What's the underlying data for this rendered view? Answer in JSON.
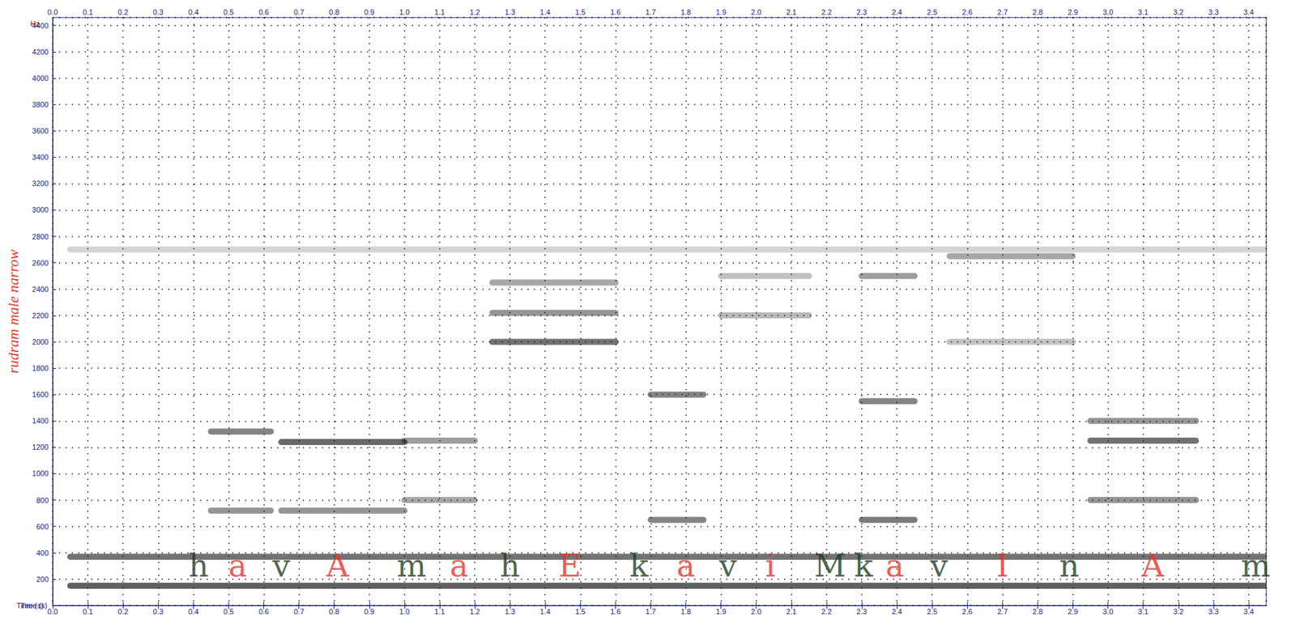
{
  "chart_data": {
    "type": "spectrogram",
    "xlabel": "Time (s)",
    "ylabel": "rudram male narrow",
    "yunit": "Hz",
    "xlim": [
      0,
      3.45
    ],
    "ylim": [
      0,
      4460
    ],
    "xticks": [
      {
        "value": 0,
        "label": "0.0"
      },
      {
        "value": 0.1,
        "label": "0.1"
      },
      {
        "value": 0.2,
        "label": "0.2"
      },
      {
        "value": 0.3,
        "label": "0.3"
      },
      {
        "value": 0.4,
        "label": "0.4"
      },
      {
        "value": 0.5,
        "label": "0.5"
      },
      {
        "value": 0.6,
        "label": "0.6"
      },
      {
        "value": 0.7,
        "label": "0.7"
      },
      {
        "value": 0.8,
        "label": "0.8"
      },
      {
        "value": 0.9,
        "label": "0.9"
      },
      {
        "value": 1,
        "label": "1.0"
      },
      {
        "value": 1.1,
        "label": "1.1"
      },
      {
        "value": 1.2,
        "label": "1.2"
      },
      {
        "value": 1.3,
        "label": "1.3"
      },
      {
        "value": 1.4,
        "label": "1.4"
      },
      {
        "value": 1.5,
        "label": "1.5"
      },
      {
        "value": 1.6,
        "label": "1.6"
      },
      {
        "value": 1.7,
        "label": "1.7"
      },
      {
        "value": 1.8,
        "label": "1.8"
      },
      {
        "value": 1.9,
        "label": "1.9"
      },
      {
        "value": 2,
        "label": "2.0"
      },
      {
        "value": 2.1,
        "label": "2.1"
      },
      {
        "value": 2.2,
        "label": "2.2"
      },
      {
        "value": 2.3,
        "label": "2.3"
      },
      {
        "value": 2.4,
        "label": "2.4"
      },
      {
        "value": 2.5,
        "label": "2.5"
      },
      {
        "value": 2.6,
        "label": "2.6"
      },
      {
        "value": 2.7,
        "label": "2.7"
      },
      {
        "value": 2.8,
        "label": "2.8"
      },
      {
        "value": 2.9,
        "label": "2.9"
      },
      {
        "value": 3,
        "label": "3.0"
      },
      {
        "value": 3.1,
        "label": "3.1"
      },
      {
        "value": 3.2,
        "label": "3.2"
      },
      {
        "value": 3.3,
        "label": "3.3"
      },
      {
        "value": 3.4,
        "label": "3.4"
      }
    ],
    "yticks": [
      200,
      400,
      600,
      800,
      1000,
      1200,
      1400,
      1600,
      1800,
      2000,
      2200,
      2400,
      2600,
      2800,
      3000,
      3200,
      3400,
      3600,
      3800,
      4000,
      4200,
      4400
    ],
    "grid": true,
    "bands": [
      [
        0.05,
        3.45,
        150,
        0.9
      ],
      [
        0.05,
        3.45,
        370,
        0.8
      ],
      [
        0.05,
        3.45,
        2700,
        0.25
      ],
      [
        0.45,
        0.62,
        1320,
        0.7
      ],
      [
        0.45,
        0.62,
        720,
        0.6
      ],
      [
        0.65,
        1.0,
        1240,
        0.85
      ],
      [
        0.65,
        1.0,
        720,
        0.6
      ],
      [
        1.0,
        1.2,
        1250,
        0.55
      ],
      [
        1.0,
        1.2,
        800,
        0.5
      ],
      [
        1.25,
        1.6,
        2000,
        0.8
      ],
      [
        1.25,
        1.6,
        2220,
        0.6
      ],
      [
        1.25,
        1.6,
        2450,
        0.5
      ],
      [
        1.7,
        1.85,
        1600,
        0.7
      ],
      [
        1.7,
        1.85,
        650,
        0.7
      ],
      [
        1.9,
        2.15,
        2200,
        0.4
      ],
      [
        1.9,
        2.15,
        2500,
        0.35
      ],
      [
        2.3,
        2.45,
        1550,
        0.7
      ],
      [
        2.3,
        2.45,
        650,
        0.75
      ],
      [
        2.3,
        2.45,
        2500,
        0.55
      ],
      [
        2.55,
        2.9,
        2650,
        0.5
      ],
      [
        2.55,
        2.9,
        2000,
        0.35
      ],
      [
        2.95,
        3.25,
        1250,
        0.8
      ],
      [
        2.95,
        3.25,
        1400,
        0.6
      ],
      [
        2.95,
        3.25,
        800,
        0.6
      ]
    ],
    "annotations": [
      {
        "text": "h",
        "x": 0.415,
        "y": 300,
        "color": "#1f3d22"
      },
      {
        "text": "a",
        "x": 0.526,
        "y": 300,
        "color": "#e8322a"
      },
      {
        "text": "v",
        "x": 0.65,
        "y": 300,
        "color": "#1f3d22"
      },
      {
        "text": "A",
        "x": 0.81,
        "y": 300,
        "color": "#e8322a"
      },
      {
        "text": "m",
        "x": 1.02,
        "y": 300,
        "color": "#1f3d22"
      },
      {
        "text": "a",
        "x": 1.155,
        "y": 300,
        "color": "#e8322a"
      },
      {
        "text": "h",
        "x": 1.3,
        "y": 300,
        "color": "#1f3d22"
      },
      {
        "text": "E",
        "x": 1.47,
        "y": 300,
        "color": "#e8322a"
      },
      {
        "text": "k",
        "x": 1.667,
        "y": 300,
        "color": "#1f3d22"
      },
      {
        "text": "a",
        "x": 1.8,
        "y": 300,
        "color": "#e8322a"
      },
      {
        "text": "v",
        "x": 1.92,
        "y": 300,
        "color": "#1f3d22"
      },
      {
        "text": "i",
        "x": 2.04,
        "y": 300,
        "color": "#e8322a"
      },
      {
        "text": "M",
        "x": 2.21,
        "y": 300,
        "color": "#1f3d22"
      },
      {
        "text": "k",
        "x": 2.305,
        "y": 300,
        "color": "#1f3d22"
      },
      {
        "text": "a",
        "x": 2.394,
        "y": 300,
        "color": "#e8322a"
      },
      {
        "text": "v",
        "x": 2.52,
        "y": 300,
        "color": "#1f3d22"
      },
      {
        "text": "I",
        "x": 2.7,
        "y": 300,
        "color": "#e8322a"
      },
      {
        "text": "n",
        "x": 2.89,
        "y": 300,
        "color": "#1f3d22"
      },
      {
        "text": "A",
        "x": 3.127,
        "y": 300,
        "color": "#e8322a"
      },
      {
        "text": "m",
        "x": 3.42,
        "y": 300,
        "color": "#1f3d22"
      }
    ]
  }
}
